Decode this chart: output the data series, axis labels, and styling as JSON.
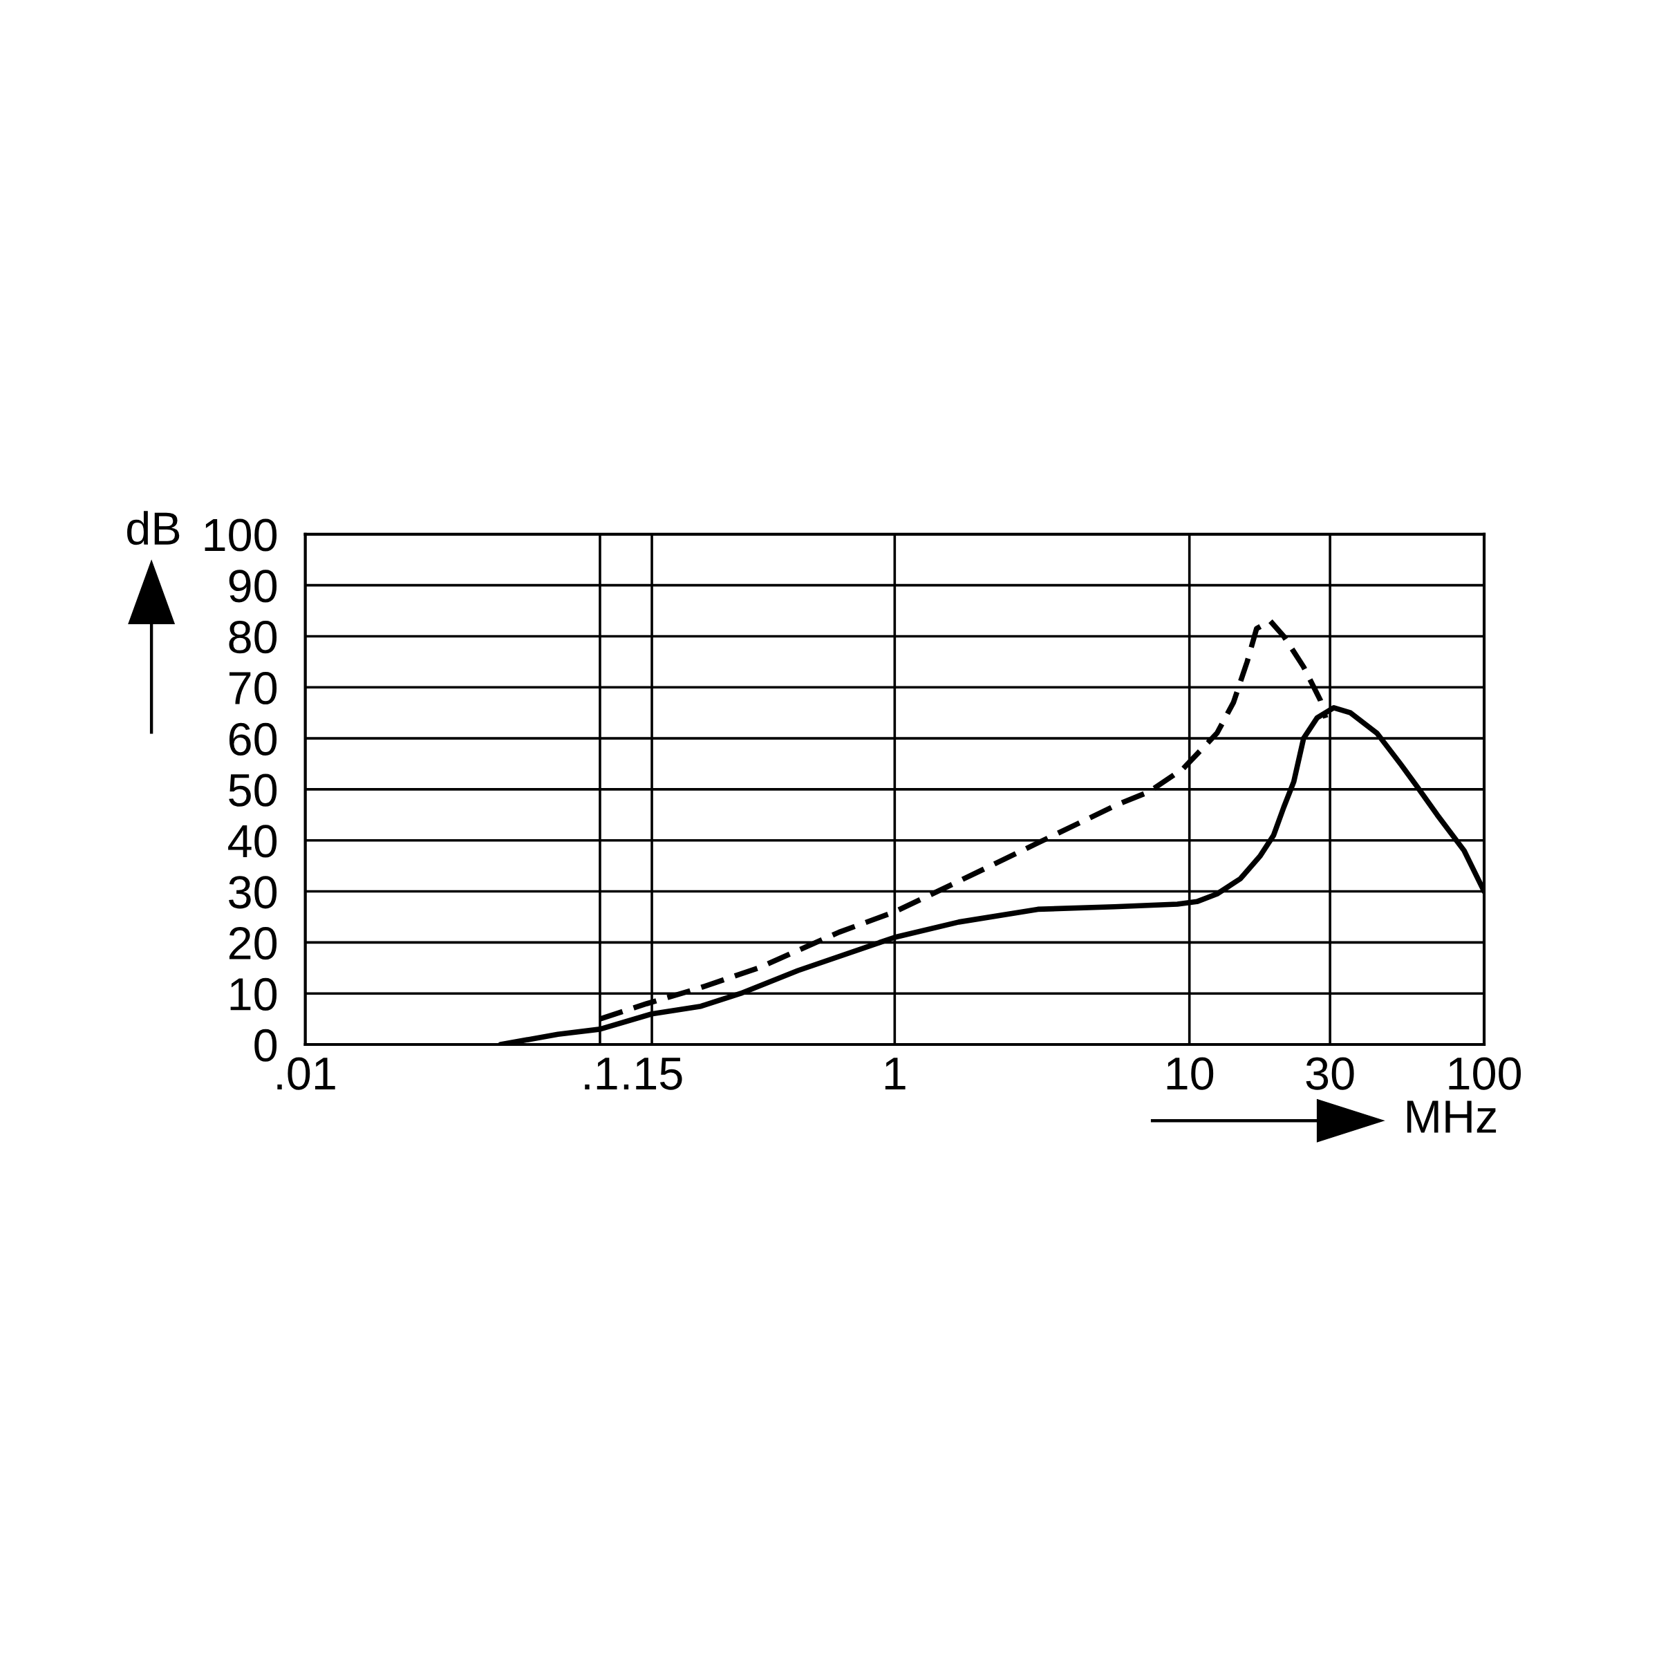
{
  "chart_data": {
    "type": "line",
    "xlabel": "MHz",
    "ylabel": "dB",
    "log": "x",
    "xlim": [
      0.01,
      100
    ],
    "xticks": [
      {
        "value": 0.01,
        "label": ".01"
      },
      {
        "value": 0.1,
        "label": ".1"
      },
      {
        "value": 0.15,
        "label": ".15"
      },
      1,
      10,
      30,
      100
    ],
    "ylim": [
      0,
      100
    ],
    "yticks": [
      0,
      10,
      20,
      30,
      40,
      50,
      60,
      70,
      80,
      90,
      100
    ],
    "grid": true,
    "marker": "none",
    "series": [
      {
        "color": "#000000",
        "line_style": "solid",
        "x": [
          0.046,
          0.072,
          0.1,
          0.15,
          0.22,
          0.3,
          0.47,
          1,
          1.65,
          3.06,
          5.56,
          9.1,
          10.6,
          12.4,
          14.9,
          17.4,
          19.3,
          20.9,
          22.6,
          24.4,
          27.1,
          30.9,
          35.2,
          43.3,
          52,
          59.3,
          69.3,
          85.5,
          100
        ],
        "values": [
          0,
          2,
          3,
          6,
          7.5,
          10,
          14.5,
          21,
          24,
          26.5,
          27,
          27.5,
          28,
          29.5,
          32.5,
          37,
          41,
          46.5,
          51.5,
          60,
          64,
          66,
          65,
          61,
          55,
          50.5,
          45,
          38,
          30
        ]
      },
      {
        "color": "#000000",
        "line_style": "dashed",
        "x": [
          0.1,
          0.144,
          0.216,
          0.345,
          0.647,
          1,
          1.65,
          3.06,
          5.69,
          7.28,
          9.5,
          12.4,
          14.1,
          15.7,
          16.9,
          18.8,
          20.9,
          24.4,
          27.8,
          29
        ],
        "values": [
          5,
          8,
          11,
          15,
          22,
          26,
          32,
          39.5,
          47,
          49.5,
          54,
          61,
          67,
          75,
          81.5,
          83,
          80,
          74,
          67.5,
          64
        ]
      }
    ]
  }
}
